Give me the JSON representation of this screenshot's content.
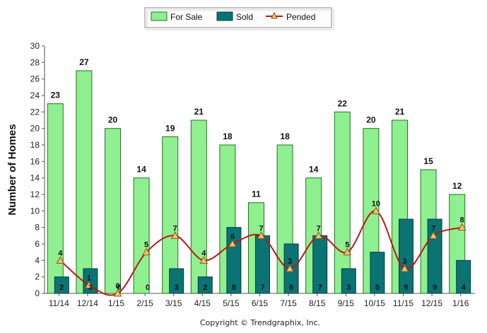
{
  "copyright": "Copyright © Trendgraphix, Inc.",
  "colors": {
    "for_sale": "#8ef08e",
    "for_sale_stroke": "#2b6e2b",
    "sold": "#0b7373",
    "sold_stroke": "#053f3f",
    "pended_line": "#c0141c",
    "pended_marker": "#f2c27a"
  },
  "chart_data": {
    "type": "bar",
    "title": "",
    "xlabel": "",
    "ylabel": "Number of Homes",
    "ylim": [
      0,
      30
    ],
    "yticks": [
      0,
      2,
      4,
      6,
      8,
      10,
      12,
      14,
      16,
      18,
      20,
      22,
      24,
      26,
      28,
      30
    ],
    "grid": false,
    "legend_position": "top-center",
    "categories": [
      "11/14",
      "12/14",
      "1/15",
      "2/15",
      "3/15",
      "4/15",
      "5/15",
      "6/15",
      "7/15",
      "8/15",
      "9/15",
      "10/15",
      "11/15",
      "12/15",
      "1/16"
    ],
    "series": [
      {
        "name": "For Sale",
        "type": "bar",
        "values": [
          23,
          27,
          20,
          14,
          19,
          21,
          18,
          11,
          18,
          14,
          22,
          20,
          21,
          15,
          12
        ]
      },
      {
        "name": "Sold",
        "type": "bar",
        "values": [
          2,
          3,
          0,
          0,
          3,
          2,
          8,
          7,
          6,
          7,
          3,
          5,
          9,
          9,
          4
        ]
      },
      {
        "name": "Pended",
        "type": "line",
        "values": [
          4,
          1,
          0,
          5,
          7,
          4,
          6,
          7,
          3,
          7,
          5,
          10,
          3,
          7,
          8
        ]
      }
    ]
  }
}
